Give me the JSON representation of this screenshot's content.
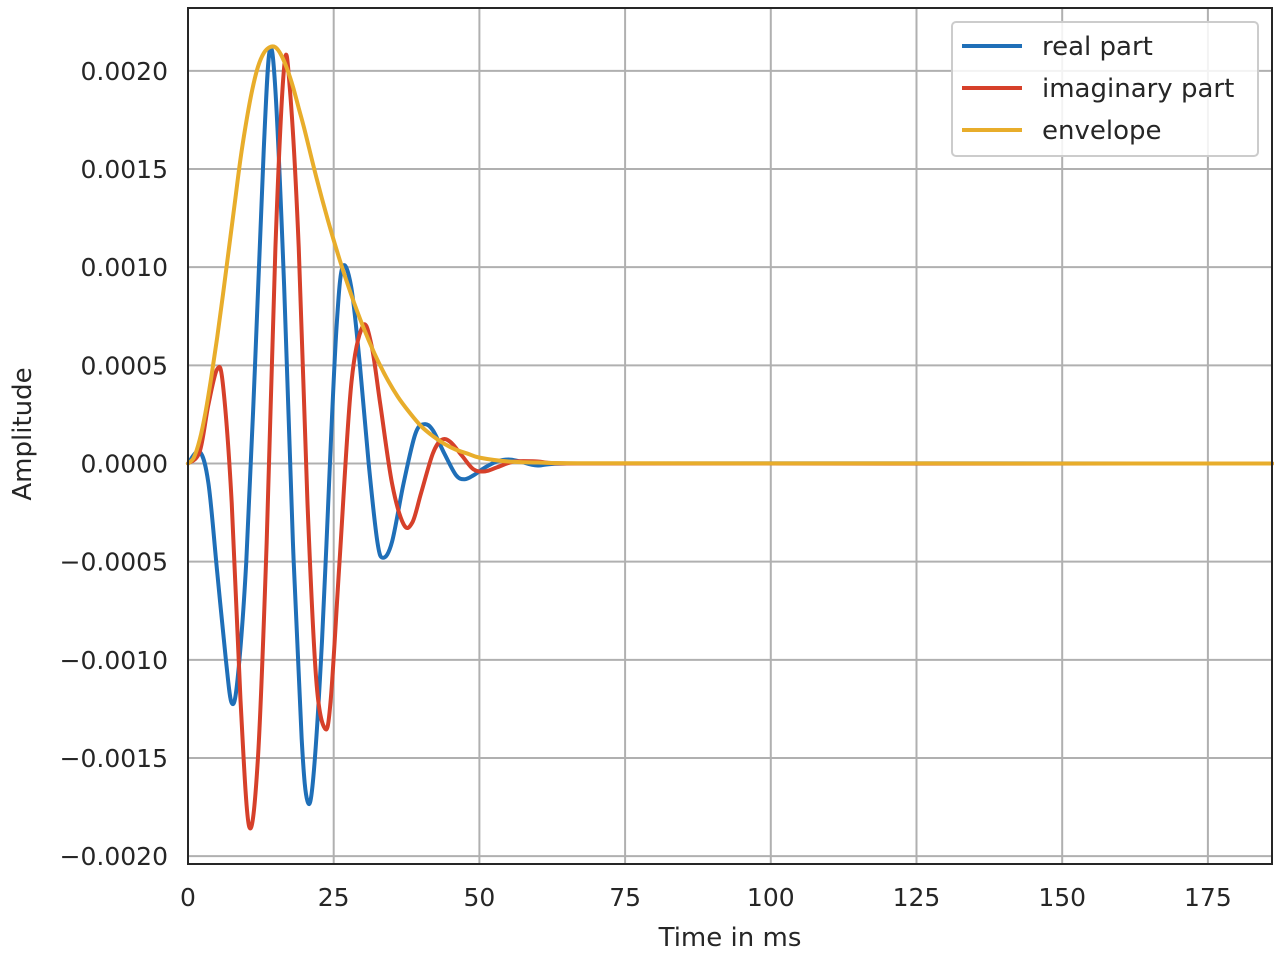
{
  "chart_data": {
    "type": "line",
    "title": "",
    "xlabel": "Time in ms",
    "ylabel": "Amplitude",
    "xlim": [
      0,
      186
    ],
    "ylim": [
      -0.00204,
      0.00232
    ],
    "x_ticks": [
      0,
      25,
      50,
      75,
      100,
      125,
      150,
      175
    ],
    "x_tick_labels": [
      "0",
      "25",
      "50",
      "75",
      "100",
      "125",
      "150",
      "175"
    ],
    "y_ticks": [
      0.002,
      0.0015,
      0.001,
      0.0005,
      0.0,
      -0.0005,
      -0.001,
      -0.0015,
      -0.002
    ],
    "y_tick_labels": [
      "0.0020",
      "0.0015",
      "0.0010",
      "0.0005",
      "0.0000",
      "−0.0005",
      "−0.0010",
      "−0.0015",
      "−0.0020"
    ],
    "grid": true,
    "legend_position": "top-right",
    "series": [
      {
        "name": "real part",
        "color": "#1f6fb8",
        "points": [
          [
            0,
            0
          ],
          [
            2,
            6e-05
          ],
          [
            3.5,
            -0.0001
          ],
          [
            5,
            -0.00055
          ],
          [
            6.5,
            -0.001
          ],
          [
            7.5,
            -0.00122
          ],
          [
            8.5,
            -0.0011
          ],
          [
            10,
            -0.0005
          ],
          [
            11.5,
            0.0005
          ],
          [
            13,
            0.0016
          ],
          [
            14,
            0.0021
          ],
          [
            15,
            0.0019
          ],
          [
            16.5,
            0.0009
          ],
          [
            18,
            -0.0004
          ],
          [
            19.5,
            -0.0014
          ],
          [
            20.5,
            -0.00172
          ],
          [
            21.5,
            -0.0016
          ],
          [
            23,
            -0.0009
          ],
          [
            24.5,
            0.0001
          ],
          [
            25.5,
            0.0007
          ],
          [
            26.5,
            0.001
          ],
          [
            28,
            0.0009
          ],
          [
            29.5,
            0.0005
          ],
          [
            31,
            0.0
          ],
          [
            32.5,
            -0.0004
          ],
          [
            33.5,
            -0.00048
          ],
          [
            35,
            -0.0004
          ],
          [
            37,
            -0.0001
          ],
          [
            39,
            0.00015
          ],
          [
            40.5,
            0.0002
          ],
          [
            42,
            0.00017
          ],
          [
            44,
            5e-05
          ],
          [
            46,
            -6e-05
          ],
          [
            47.5,
            -8e-05
          ],
          [
            49,
            -6e-05
          ],
          [
            51,
            -2e-05
          ],
          [
            53,
            1e-05
          ],
          [
            55,
            2e-05
          ],
          [
            57,
            1e-05
          ],
          [
            60,
            -1e-05
          ],
          [
            65,
            0.0
          ],
          [
            186,
            0.0
          ]
        ]
      },
      {
        "name": "imaginary part",
        "color": "#d6402a",
        "points": [
          [
            0,
            0
          ],
          [
            2,
            6e-05
          ],
          [
            3.5,
            0.0003
          ],
          [
            5,
            0.00048
          ],
          [
            6,
            0.0004
          ],
          [
            7.5,
            -0.0002
          ],
          [
            9,
            -0.0012
          ],
          [
            10.5,
            -0.00185
          ],
          [
            12,
            -0.0015
          ],
          [
            13.5,
            -0.0004
          ],
          [
            15,
            0.0011
          ],
          [
            16.5,
            0.00202
          ],
          [
            17.5,
            0.0019
          ],
          [
            19,
            0.0011
          ],
          [
            20.5,
            -0.0002
          ],
          [
            22,
            -0.0011
          ],
          [
            23.5,
            -0.00135
          ],
          [
            24.5,
            -0.0012
          ],
          [
            26,
            -0.0005
          ],
          [
            28,
            0.0004
          ],
          [
            30,
            0.0007
          ],
          [
            31.5,
            0.0006
          ],
          [
            33,
            0.0003
          ],
          [
            35,
            -0.0001
          ],
          [
            37,
            -0.00031
          ],
          [
            38.5,
            -0.0003
          ],
          [
            40,
            -0.00015
          ],
          [
            42,
            5e-05
          ],
          [
            43.5,
            0.00012
          ],
          [
            45,
            0.00011
          ],
          [
            47,
            4e-05
          ],
          [
            49,
            -3e-05
          ],
          [
            51,
            -4e-05
          ],
          [
            53,
            -2e-05
          ],
          [
            56,
            1e-05
          ],
          [
            60,
            1e-05
          ],
          [
            65,
            0.0
          ],
          [
            186,
            0.0
          ]
        ]
      },
      {
        "name": "envelope",
        "color": "#e8ad2b",
        "points": [
          [
            0,
            0
          ],
          [
            1,
            3e-05
          ],
          [
            2,
            0.00012
          ],
          [
            3,
            0.00026
          ],
          [
            4,
            0.00044
          ],
          [
            5,
            0.00064
          ],
          [
            6,
            0.00086
          ],
          [
            7,
            0.00109
          ],
          [
            8,
            0.00132
          ],
          [
            9,
            0.00155
          ],
          [
            10,
            0.00174
          ],
          [
            11,
            0.0019
          ],
          [
            12,
            0.00202
          ],
          [
            13,
            0.00209
          ],
          [
            14,
            0.00212
          ],
          [
            15,
            0.00212
          ],
          [
            16,
            0.00208
          ],
          [
            17,
            0.00201
          ],
          [
            18,
            0.00192
          ],
          [
            19,
            0.00181
          ],
          [
            20,
            0.0017
          ],
          [
            22,
            0.00146
          ],
          [
            24,
            0.00124
          ],
          [
            26,
            0.00104
          ],
          [
            28,
            0.00086
          ],
          [
            30,
            0.0007
          ],
          [
            32,
            0.00056
          ],
          [
            34,
            0.00044
          ],
          [
            36,
            0.00034
          ],
          [
            38,
            0.00026
          ],
          [
            40,
            0.00019
          ],
          [
            42,
            0.00014
          ],
          [
            44,
            0.0001
          ],
          [
            46,
            7e-05
          ],
          [
            48,
            5e-05
          ],
          [
            50,
            3e-05
          ],
          [
            55,
            1e-05
          ],
          [
            60,
            5e-06
          ],
          [
            70,
            1e-06
          ],
          [
            186,
            0.0
          ]
        ]
      }
    ]
  }
}
